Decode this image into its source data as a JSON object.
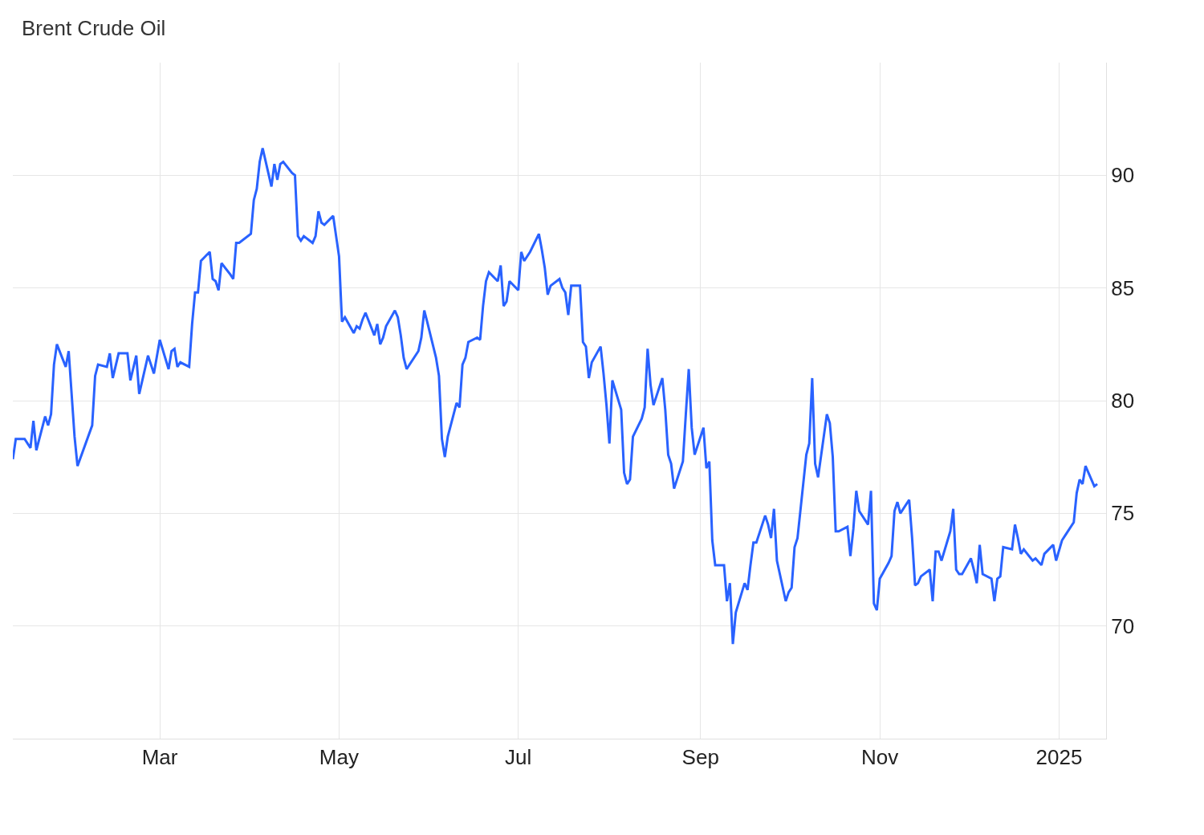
{
  "chart_data": {
    "type": "line",
    "title": "Brent Crude Oil",
    "x": [
      "2024-01-11",
      "2024-01-12",
      "2024-01-15",
      "2024-01-17",
      "2024-01-18",
      "2024-01-19",
      "2024-01-22",
      "2024-01-23",
      "2024-01-24",
      "2024-01-25",
      "2024-01-26",
      "2024-01-29",
      "2024-01-30",
      "2024-02-01",
      "2024-02-02",
      "2024-02-07",
      "2024-02-08",
      "2024-02-09",
      "2024-02-12",
      "2024-02-13",
      "2024-02-14",
      "2024-02-16",
      "2024-02-19",
      "2024-02-20",
      "2024-02-22",
      "2024-02-23",
      "2024-02-26",
      "2024-02-28",
      "2024-03-01",
      "2024-03-04",
      "2024-03-05",
      "2024-03-06",
      "2024-03-07",
      "2024-03-08",
      "2024-03-11",
      "2024-03-12",
      "2024-03-13",
      "2024-03-14",
      "2024-03-15",
      "2024-03-18",
      "2024-03-19",
      "2024-03-20",
      "2024-03-21",
      "2024-03-22",
      "2024-03-25",
      "2024-03-26",
      "2024-03-27",
      "2024-03-28",
      "2024-04-01",
      "2024-04-02",
      "2024-04-03",
      "2024-04-04",
      "2024-04-05",
      "2024-04-08",
      "2024-04-09",
      "2024-04-10",
      "2024-04-11",
      "2024-04-12",
      "2024-04-15",
      "2024-04-16",
      "2024-04-17",
      "2024-04-18",
      "2024-04-19",
      "2024-04-22",
      "2024-04-23",
      "2024-04-24",
      "2024-04-25",
      "2024-04-26",
      "2024-04-29",
      "2024-04-30",
      "2024-05-01",
      "2024-05-02",
      "2024-05-03",
      "2024-05-06",
      "2024-05-07",
      "2024-05-08",
      "2024-05-09",
      "2024-05-10",
      "2024-05-13",
      "2024-05-14",
      "2024-05-15",
      "2024-05-16",
      "2024-05-17",
      "2024-05-20",
      "2024-05-21",
      "2024-05-22",
      "2024-05-23",
      "2024-05-24",
      "2024-05-28",
      "2024-05-29",
      "2024-05-30",
      "2024-05-31",
      "2024-06-03",
      "2024-06-04",
      "2024-06-05",
      "2024-06-06",
      "2024-06-07",
      "2024-06-10",
      "2024-06-11",
      "2024-06-12",
      "2024-06-13",
      "2024-06-14",
      "2024-06-17",
      "2024-06-18",
      "2024-06-19",
      "2024-06-20",
      "2024-06-21",
      "2024-06-24",
      "2024-06-25",
      "2024-06-26",
      "2024-06-27",
      "2024-06-28",
      "2024-07-01",
      "2024-07-02",
      "2024-07-03",
      "2024-07-05",
      "2024-07-08",
      "2024-07-09",
      "2024-07-10",
      "2024-07-11",
      "2024-07-12",
      "2024-07-15",
      "2024-07-16",
      "2024-07-17",
      "2024-07-18",
      "2024-07-19",
      "2024-07-22",
      "2024-07-23",
      "2024-07-24",
      "2024-07-25",
      "2024-07-26",
      "2024-07-29",
      "2024-07-30",
      "2024-07-31",
      "2024-08-01",
      "2024-08-02",
      "2024-08-05",
      "2024-08-06",
      "2024-08-07",
      "2024-08-08",
      "2024-08-09",
      "2024-08-12",
      "2024-08-13",
      "2024-08-14",
      "2024-08-15",
      "2024-08-16",
      "2024-08-19",
      "2024-08-20",
      "2024-08-21",
      "2024-08-22",
      "2024-08-23",
      "2024-08-26",
      "2024-08-27",
      "2024-08-28",
      "2024-08-29",
      "2024-08-30",
      "2024-09-02",
      "2024-09-03",
      "2024-09-04",
      "2024-09-05",
      "2024-09-06",
      "2024-09-09",
      "2024-09-10",
      "2024-09-11",
      "2024-09-12",
      "2024-09-13",
      "2024-09-16",
      "2024-09-17",
      "2024-09-18",
      "2024-09-19",
      "2024-09-20",
      "2024-09-23",
      "2024-09-24",
      "2024-09-25",
      "2024-09-26",
      "2024-09-27",
      "2024-09-30",
      "2024-10-01",
      "2024-10-02",
      "2024-10-03",
      "2024-10-04",
      "2024-10-07",
      "2024-10-08",
      "2024-10-09",
      "2024-10-10",
      "2024-10-11",
      "2024-10-14",
      "2024-10-15",
      "2024-10-16",
      "2024-10-17",
      "2024-10-18",
      "2024-10-21",
      "2024-10-22",
      "2024-10-23",
      "2024-10-24",
      "2024-10-25",
      "2024-10-28",
      "2024-10-29",
      "2024-10-30",
      "2024-10-31",
      "2024-11-01",
      "2024-11-04",
      "2024-11-05",
      "2024-11-06",
      "2024-11-07",
      "2024-11-08",
      "2024-11-11",
      "2024-11-12",
      "2024-11-13",
      "2024-11-14",
      "2024-11-15",
      "2024-11-18",
      "2024-11-19",
      "2024-11-20",
      "2024-11-21",
      "2024-11-22",
      "2024-11-25",
      "2024-11-26",
      "2024-11-27",
      "2024-11-28",
      "2024-11-29",
      "2024-12-02",
      "2024-12-03",
      "2024-12-04",
      "2024-12-05",
      "2024-12-06",
      "2024-12-09",
      "2024-12-10",
      "2024-12-11",
      "2024-12-12",
      "2024-12-13",
      "2024-12-16",
      "2024-12-17",
      "2024-12-18",
      "2024-12-19",
      "2024-12-20",
      "2024-12-23",
      "2024-12-24",
      "2024-12-26",
      "2024-12-27",
      "2024-12-30",
      "2024-12-31",
      "2025-01-02",
      "2025-01-03",
      "2025-01-06",
      "2025-01-07",
      "2025-01-08",
      "2025-01-09",
      "2025-01-10",
      "2025-01-13",
      "2025-01-14"
    ],
    "series": [
      {
        "color": "#2962ff",
        "values": [
          77.4,
          78.3,
          78.3,
          77.9,
          79.1,
          77.8,
          79.3,
          78.9,
          79.4,
          81.6,
          82.5,
          81.5,
          82.2,
          78.4,
          77.1,
          78.9,
          81.1,
          81.6,
          81.5,
          82.1,
          81.0,
          82.1,
          82.1,
          80.9,
          82.0,
          80.3,
          82.0,
          81.2,
          82.7,
          81.4,
          82.2,
          82.3,
          81.5,
          81.7,
          81.5,
          83.4,
          84.8,
          84.8,
          86.2,
          86.6,
          85.4,
          85.3,
          84.9,
          86.1,
          85.6,
          85.4,
          87.0,
          87.0,
          87.4,
          88.9,
          89.4,
          90.6,
          91.2,
          89.5,
          90.5,
          89.8,
          90.5,
          90.6,
          90.1,
          90.0,
          87.3,
          87.1,
          87.3,
          87.0,
          87.3,
          88.4,
          87.9,
          87.8,
          88.2,
          87.3,
          86.4,
          83.5,
          83.7,
          83.0,
          83.3,
          83.2,
          83.6,
          83.9,
          82.9,
          83.4,
          82.5,
          82.8,
          83.3,
          84.0,
          83.7,
          82.9,
          81.9,
          81.4,
          82.2,
          82.8,
          84.0,
          83.5,
          81.9,
          81.1,
          78.3,
          77.5,
          78.4,
          79.9,
          79.7,
          81.6,
          81.9,
          82.6,
          82.8,
          82.7,
          84.2,
          85.3,
          85.7,
          85.3,
          86.0,
          84.2,
          84.4,
          85.3,
          84.9,
          86.6,
          86.2,
          86.6,
          87.4,
          86.7,
          85.9,
          84.7,
          85.1,
          85.4,
          85.0,
          84.8,
          83.8,
          85.1,
          85.1,
          82.6,
          82.4,
          81.0,
          81.7,
          82.4,
          81.2,
          79.8,
          78.1,
          80.9,
          79.6,
          76.8,
          76.3,
          76.5,
          78.4,
          79.2,
          79.7,
          82.3,
          80.7,
          79.8,
          81.0,
          79.6,
          77.6,
          77.2,
          76.1,
          77.3,
          79.4,
          81.4,
          78.8,
          77.6,
          78.8,
          77.0,
          77.3,
          73.8,
          72.7,
          72.7,
          71.1,
          71.9,
          69.2,
          70.6,
          71.9,
          71.6,
          72.7,
          73.7,
          73.7,
          74.9,
          74.5,
          73.9,
          75.2,
          72.9,
          71.1,
          71.5,
          71.7,
          73.5,
          73.9,
          77.6,
          78.1,
          81.0,
          77.2,
          76.6,
          79.4,
          79.0,
          77.5,
          74.2,
          74.2,
          74.4,
          73.1,
          74.3,
          76.0,
          75.1,
          74.5,
          76.0,
          71.0,
          70.7,
          72.1,
          72.8,
          73.1,
          75.1,
          75.5,
          75.0,
          75.6,
          73.9,
          71.8,
          71.9,
          72.2,
          72.5,
          71.1,
          73.3,
          73.3,
          72.9,
          74.2,
          75.2,
          72.5,
          72.3,
          72.3,
          73.0,
          72.5,
          71.9,
          73.6,
          72.3,
          72.1,
          71.1,
          72.1,
          72.2,
          73.5,
          73.4,
          74.5,
          73.9,
          73.2,
          73.4,
          72.9,
          73.0,
          72.7,
          73.2,
          73.6,
          72.9,
          73.8,
          74.0,
          74.6,
          75.9,
          76.5,
          76.3,
          77.1,
          76.2,
          76.3
        ]
      }
    ],
    "xlim": [
      "2024-01-11",
      "2025-01-17"
    ],
    "xticks": [
      {
        "value": "2024-03-01",
        "label": "Mar"
      },
      {
        "value": "2024-05-01",
        "label": "May"
      },
      {
        "value": "2024-07-01",
        "label": "Jul"
      },
      {
        "value": "2024-09-01",
        "label": "Sep"
      },
      {
        "value": "2024-11-01",
        "label": "Nov"
      },
      {
        "value": "2025-01-01",
        "label": "2025"
      }
    ],
    "ylim": [
      65,
      95
    ],
    "yticks": [
      70,
      75,
      80,
      85,
      90
    ],
    "grid": true,
    "marker": "none",
    "line_style": "solid"
  }
}
